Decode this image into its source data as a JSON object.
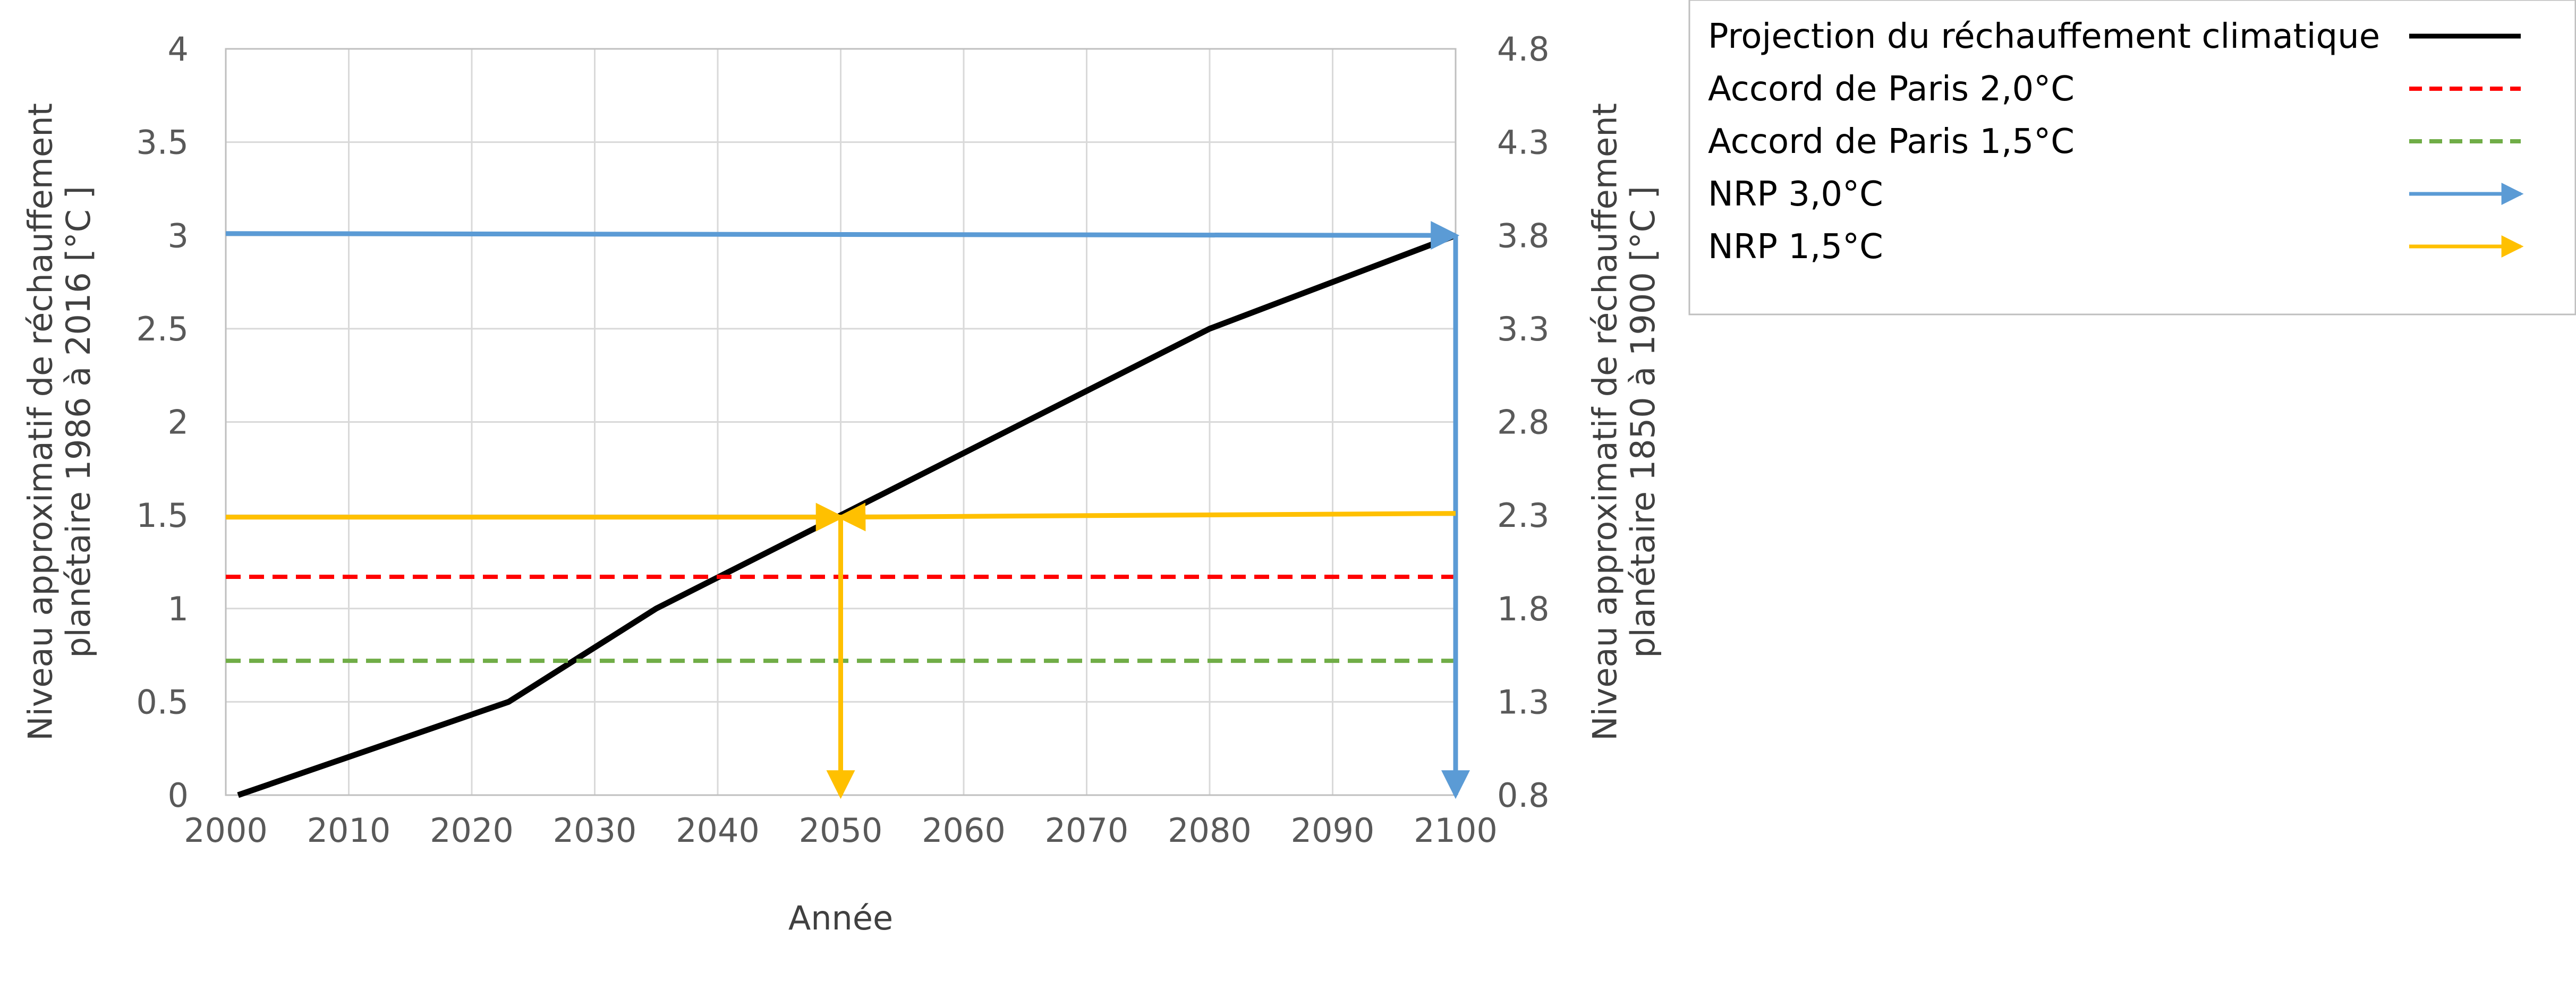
{
  "chart_data": {
    "type": "line",
    "xlabel": "Année",
    "ylabel_left": "Niveau approximatif de réchauffement planétaire 1986 à 2016 [°C ]",
    "ylabel_right": "Niveau approximatif de réchauffement planétaire 1850 à 1900 [°C ]",
    "ylabel_left_lines": [
      "Niveau approximatif de réchauffement",
      "planétaire 1986 à 2016 [°C ]"
    ],
    "ylabel_right_lines": [
      "Niveau approximatif de réchauffement",
      "planétaire 1850 à 1900 [°C ]"
    ],
    "xlim": [
      2000,
      2100
    ],
    "ylim_left": [
      0,
      4
    ],
    "ylim_right": [
      0.8,
      4.8
    ],
    "x_ticks": [
      "2000",
      "2010",
      "2020",
      "2030",
      "2040",
      "2050",
      "2060",
      "2070",
      "2080",
      "2090",
      "2100"
    ],
    "y_left_ticks": [
      "0",
      "0.5",
      "1",
      "1.5",
      "2",
      "2.5",
      "3",
      "3.5",
      "4"
    ],
    "y_right_ticks": [
      "0.8",
      "1.3",
      "1.8",
      "2.3",
      "2.8",
      "3.3",
      "3.8",
      "4.3",
      "4.8"
    ],
    "grid": true,
    "legend_position": "top-right, outside plot",
    "series": [
      {
        "name": "Projection du réchauffement climatique",
        "style": "solid",
        "color": "#000000",
        "points": [
          [
            2001,
            0
          ],
          [
            2023,
            0.5
          ],
          [
            2035,
            1.0
          ],
          [
            2050,
            1.5
          ],
          [
            2080,
            2.5
          ],
          [
            2100,
            3.0
          ]
        ]
      },
      {
        "name": "Accord de Paris 2,0°C",
        "style": "dashed",
        "color": "#ff0000",
        "points": [
          [
            2000,
            1.17
          ],
          [
            2100,
            1.17
          ]
        ]
      },
      {
        "name": "Accord de Paris 1,5°C",
        "style": "dashed",
        "color": "#70ad47",
        "points": [
          [
            2000,
            0.72
          ],
          [
            2100,
            0.72
          ]
        ]
      },
      {
        "name": "NRP 3,0°C",
        "style": "arrow",
        "color": "#5b9bd5",
        "segments": [
          [
            [
              2000,
              3.01
            ],
            [
              2100,
              3.0
            ]
          ],
          [
            [
              2100,
              3.0
            ],
            [
              2100,
              0
            ]
          ]
        ]
      },
      {
        "name": "NRP 1,5°C",
        "style": "arrow",
        "color": "#ffc000",
        "segments": [
          [
            [
              2000,
              1.49
            ],
            [
              2050,
              1.49
            ]
          ],
          [
            [
              2100,
              1.51
            ],
            [
              2050,
              1.49
            ]
          ],
          [
            [
              2050,
              1.49
            ],
            [
              2050,
              0
            ]
          ]
        ]
      }
    ]
  }
}
